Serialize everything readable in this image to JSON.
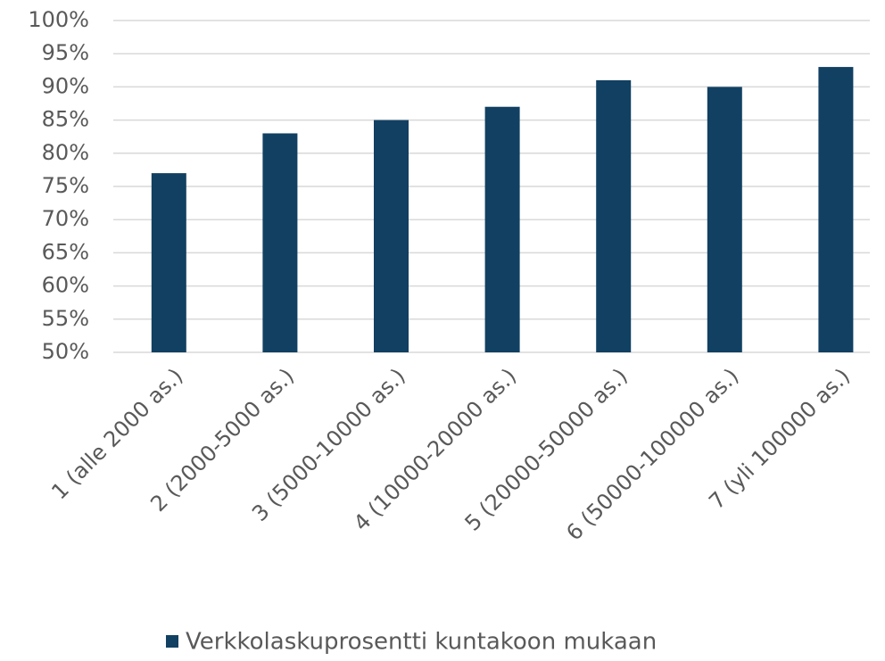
{
  "chart_data": {
    "type": "bar",
    "categories": [
      "1 (alle 2000 as.)",
      "2 (2000-5000 as.)",
      "3 (5000-10000 as.)",
      "4 (10000-20000 as.)",
      "5 (20000-50000 as.)",
      "6 (50000-100000 as.)",
      "7 (yli 100000 as.)"
    ],
    "series": [
      {
        "name": "Verkkolaskuprosentti kuntakoon mukaan",
        "color": "#114062",
        "values": [
          77,
          83,
          85,
          87,
          91,
          90,
          93
        ]
      }
    ],
    "ylim": [
      50,
      100
    ],
    "yticks": [
      {
        "value": 50,
        "label": "50%"
      },
      {
        "value": 55,
        "label": "55%"
      },
      {
        "value": 60,
        "label": "60%"
      },
      {
        "value": 65,
        "label": "65%"
      },
      {
        "value": 70,
        "label": "70%"
      },
      {
        "value": 75,
        "label": "75%"
      },
      {
        "value": 80,
        "label": "80%"
      },
      {
        "value": 85,
        "label": "85%"
      },
      {
        "value": 90,
        "label": "90%"
      },
      {
        "value": 95,
        "label": "95%"
      },
      {
        "value": 100,
        "label": "100%"
      }
    ],
    "grid": true,
    "legend": "bottom"
  }
}
